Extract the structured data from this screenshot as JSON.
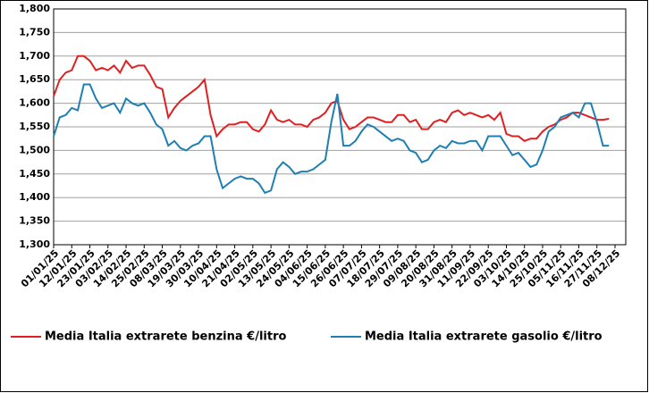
{
  "chart_data": {
    "type": "line",
    "categories": [
      "01/01/25",
      null,
      null,
      "12/01/25",
      null,
      null,
      "23/01/25",
      null,
      null,
      "03/02/25",
      null,
      null,
      "14/02/25",
      null,
      null,
      "25/02/25",
      null,
      null,
      "08/03/25",
      null,
      null,
      "19/03/25",
      null,
      null,
      "30/03/25",
      null,
      null,
      "10/04/25",
      null,
      null,
      "21/04/25",
      null,
      null,
      "02/05/25",
      null,
      null,
      "13/05/25",
      null,
      null,
      "24/05/25",
      null,
      null,
      "04/06/25",
      null,
      null,
      "15/06/25",
      null,
      null,
      "26/06/25",
      null,
      null,
      "07/07/25",
      null,
      null,
      "18/07/25",
      null,
      null,
      "29/07/25",
      null,
      null,
      "09/08/25",
      null,
      null,
      "20/08/25",
      null,
      null,
      "31/08/25",
      null,
      null,
      "11/09/25",
      null,
      null,
      "22/09/25",
      null,
      null,
      "03/10/25",
      null,
      null,
      "14/10/25",
      null,
      null,
      "25/10/25",
      null,
      null,
      "05/11/25",
      null,
      null,
      "16/11/25",
      null,
      null,
      "27/11/25",
      null,
      null,
      "08/12/25"
    ],
    "series": [
      {
        "name": "Media Italia extrarete benzina €/litro",
        "color": "#e02020",
        "values": [
          1615,
          1650,
          1665,
          1670,
          1700,
          1700,
          1690,
          1670,
          1675,
          1670,
          1680,
          1665,
          1690,
          1675,
          1680,
          1680,
          1660,
          1635,
          1630,
          1570,
          1590,
          1605,
          1615,
          1625,
          1635,
          1650,
          1575,
          1530,
          1545,
          1555,
          1555,
          1560,
          1560,
          1545,
          1540,
          1555,
          1585,
          1565,
          1560,
          1565,
          1555,
          1555,
          1550,
          1565,
          1570,
          1580,
          1600,
          1605,
          1565,
          1545,
          1550,
          1560,
          1570,
          1570,
          1565,
          1560,
          1560,
          1575,
          1575,
          1560,
          1565,
          1545,
          1545,
          1560,
          1565,
          1560,
          1580,
          1585,
          1575,
          1580,
          1575,
          1570,
          1575,
          1565,
          1580,
          1535,
          1530,
          1530,
          1520,
          1525,
          1525,
          1540,
          1550,
          1555,
          1565,
          1570,
          1580,
          1580,
          1575,
          1570,
          1565,
          1565,
          1567,
          null
        ]
      },
      {
        "name": "Media Italia extrarete gasolio €/litro",
        "color": "#1f7fb4",
        "values": [
          1530,
          1570,
          1575,
          1590,
          1585,
          1640,
          1640,
          1610,
          1590,
          1595,
          1600,
          1580,
          1610,
          1600,
          1595,
          1600,
          1580,
          1555,
          1545,
          1510,
          1520,
          1505,
          1500,
          1510,
          1515,
          1530,
          1530,
          1460,
          1420,
          1430,
          1440,
          1445,
          1440,
          1440,
          1430,
          1410,
          1415,
          1460,
          1475,
          1465,
          1450,
          1455,
          1455,
          1460,
          1470,
          1480,
          1560,
          1620,
          1510,
          1510,
          1520,
          1540,
          1555,
          1550,
          1540,
          1530,
          1520,
          1525,
          1520,
          1500,
          1495,
          1475,
          1480,
          1500,
          1510,
          1505,
          1520,
          1515,
          1515,
          1520,
          1520,
          1500,
          1530,
          1530,
          1530,
          1510,
          1490,
          1495,
          1480,
          1465,
          1470,
          1500,
          1540,
          1550,
          1570,
          1575,
          1580,
          1570,
          1600,
          1600,
          1560,
          1510,
          1510,
          null
        ]
      }
    ],
    "ylim": [
      1300,
      1800
    ],
    "yticks": [
      {
        "value": 1300,
        "label": "1,300"
      },
      {
        "value": 1350,
        "label": "1,350"
      },
      {
        "value": 1400,
        "label": "1,400"
      },
      {
        "value": 1450,
        "label": "1,450"
      },
      {
        "value": 1500,
        "label": "1,500"
      },
      {
        "value": 1550,
        "label": "1,550"
      },
      {
        "value": 1600,
        "label": "1,600"
      },
      {
        "value": 1650,
        "label": "1,650"
      },
      {
        "value": 1700,
        "label": "1,700"
      },
      {
        "value": 1750,
        "label": "1,750"
      },
      {
        "value": 1800,
        "label": "1,800"
      }
    ],
    "grid": true
  }
}
